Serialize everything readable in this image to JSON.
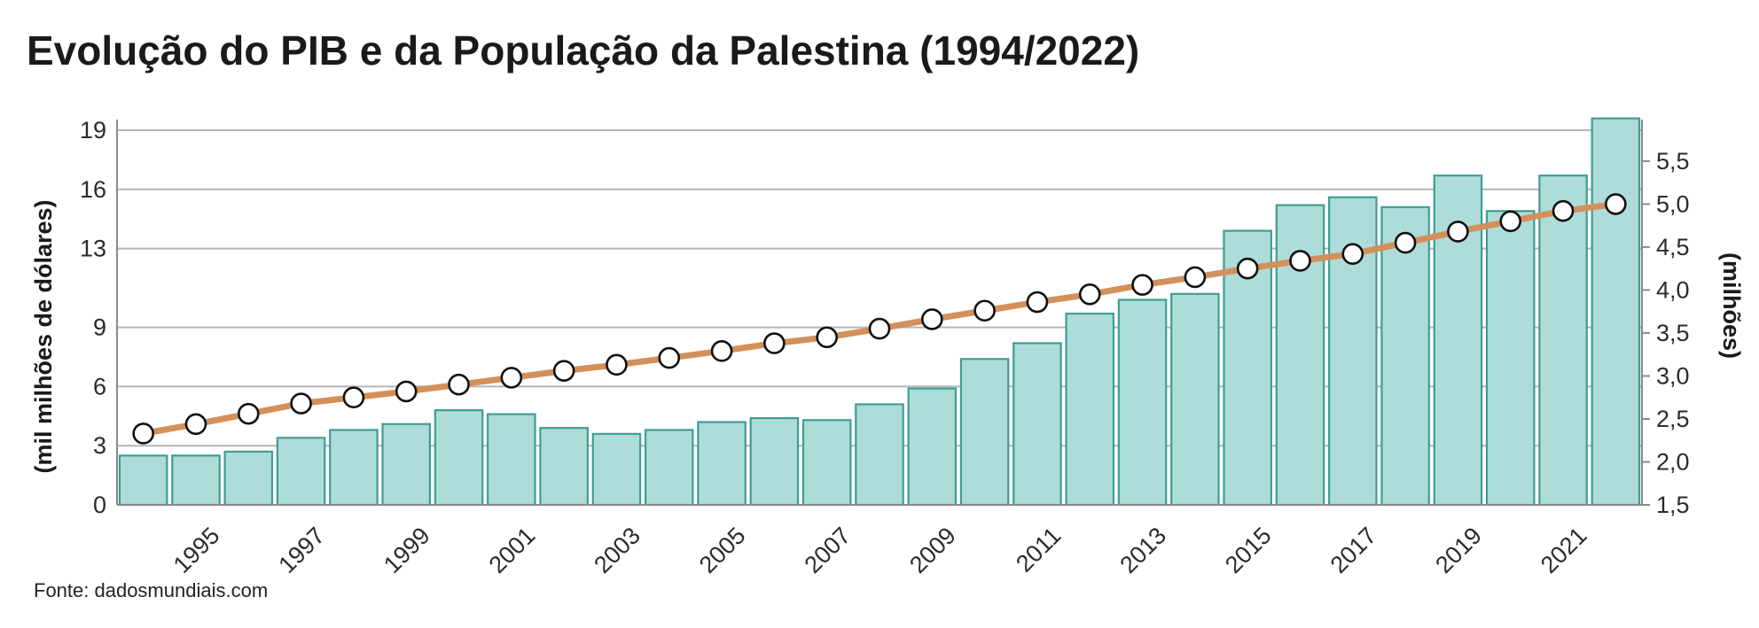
{
  "title": "Evolução do PIB e da População da Palestina (1994/2022)",
  "source": "Fonte: dadosmundiais.com",
  "chart_data": {
    "type": "bar",
    "title": "Evolução do PIB e da População da Palestina (1994/2022)",
    "grid": true,
    "x": [
      1994,
      1995,
      1996,
      1997,
      1998,
      1999,
      2000,
      2001,
      2002,
      2003,
      2004,
      2005,
      2006,
      2007,
      2008,
      2009,
      2010,
      2011,
      2012,
      2013,
      2014,
      2015,
      2016,
      2017,
      2018,
      2019,
      2020,
      2021,
      2022
    ],
    "x_tick_labels": [
      "1995",
      "1997",
      "1999",
      "2001",
      "2003",
      "2005",
      "2007",
      "2009",
      "2011",
      "2013",
      "2015",
      "2017",
      "2019",
      "2021"
    ],
    "left_axis": {
      "label": "(mil milhões de dólares)",
      "ylim": [
        0,
        19
      ],
      "ticks": [
        0,
        3,
        6,
        9,
        13,
        16,
        19
      ],
      "tick_labels": [
        "0",
        "3",
        "6",
        "9",
        "13",
        "16",
        "19"
      ]
    },
    "right_axis": {
      "label": "(milhões)",
      "ylim": [
        1.5,
        5.86
      ],
      "ticks": [
        1.5,
        2.0,
        2.5,
        3.0,
        3.5,
        4.0,
        4.5,
        5.0,
        5.5
      ],
      "tick_labels": [
        "1,5",
        "2,0",
        "2,5",
        "3,0",
        "3,5",
        "4,0",
        "4,5",
        "5,0",
        "5,5"
      ]
    },
    "series": [
      {
        "type": "bar",
        "axis": "left",
        "color": "#aedcd8",
        "stroke": "#3f9d94",
        "values": [
          2.5,
          2.5,
          2.7,
          3.4,
          3.8,
          4.1,
          4.8,
          4.6,
          3.9,
          3.6,
          3.8,
          4.2,
          4.4,
          4.3,
          5.1,
          5.9,
          7.4,
          8.2,
          9.7,
          10.4,
          10.7,
          13.9,
          15.2,
          15.6,
          15.1,
          16.7,
          14.9,
          16.7,
          19.6
        ]
      },
      {
        "type": "line",
        "axis": "right",
        "color": "#d4905a",
        "marker": "circle",
        "values": [
          2.33,
          2.44,
          2.56,
          2.68,
          2.75,
          2.82,
          2.9,
          2.98,
          3.06,
          3.13,
          3.21,
          3.29,
          3.38,
          3.45,
          3.55,
          3.66,
          3.76,
          3.86,
          3.95,
          4.06,
          4.15,
          4.25,
          4.34,
          4.42,
          4.55,
          4.68,
          4.8,
          4.92,
          5.0
        ]
      }
    ]
  }
}
